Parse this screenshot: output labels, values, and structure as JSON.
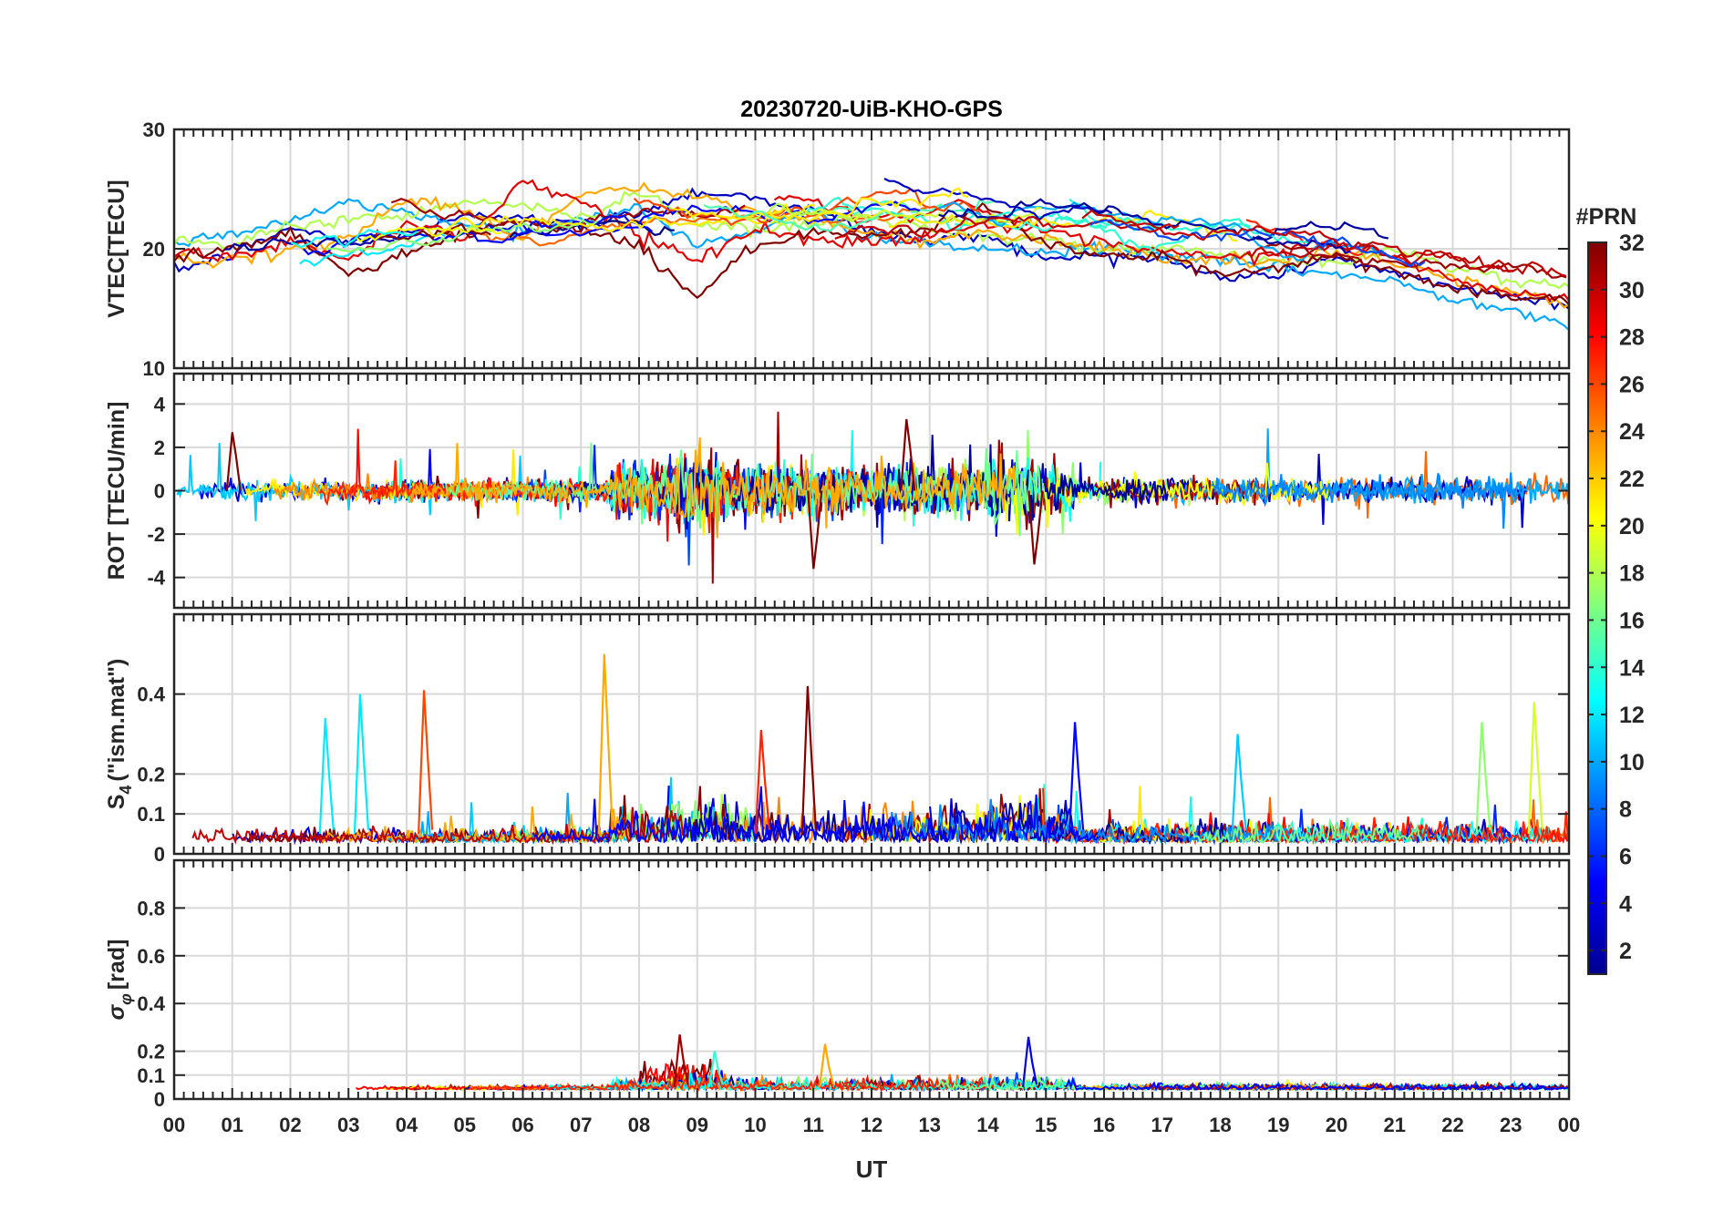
{
  "chart_data": {
    "type": "line",
    "title": "20230720-UiB-KHO-GPS",
    "xlabel": "UT",
    "x_tick_labels": [
      "00",
      "01",
      "02",
      "03",
      "04",
      "05",
      "06",
      "07",
      "08",
      "09",
      "10",
      "11",
      "12",
      "13",
      "14",
      "15",
      "16",
      "17",
      "18",
      "19",
      "20",
      "21",
      "22",
      "23",
      "00"
    ],
    "x_range_hours": [
      0,
      24
    ],
    "colorbar": {
      "label": "#PRN",
      "range": [
        1,
        32
      ],
      "tick_labels": [
        "2",
        "4",
        "6",
        "8",
        "10",
        "12",
        "14",
        "16",
        "18",
        "20",
        "22",
        "24",
        "26",
        "28",
        "30",
        "32"
      ],
      "colormap": "jet"
    },
    "panels": [
      {
        "id": "vtec",
        "ylabel": "VTEC[TECU]",
        "ylim": [
          10,
          30
        ],
        "y_tick_labels": [
          "10",
          "20",
          "30"
        ],
        "y_ticks": [
          10,
          20,
          30
        ],
        "description_series": [
          {
            "prn": 3,
            "values_hourly": [
              18.2,
              19.5,
              21.8,
              20.5,
              21.4,
              22.6,
              22.9,
              21.8,
              23.1,
              24.8,
              24.3,
              23.2,
              21.4,
              20.6,
              21.2,
              19.0,
              19.6,
              19.1,
              17.6,
              17.8,
              19.3,
              17.8,
              16.9,
              16.0,
              15.2
            ]
          },
          {
            "prn": 10,
            "values_hourly": [
              20.6,
              21.3,
              22.4,
              23.8,
              23.1,
              22.0,
              21.7,
              22.5,
              23.4,
              20.2,
              21.6,
              22.9,
              21.0,
              20.3,
              20.0,
              19.6,
              20.2,
              19.5,
              18.9,
              18.4,
              17.9,
              17.2,
              15.8,
              15.1,
              13.4
            ]
          },
          {
            "prn": 18,
            "values_hourly": [
              21.0,
              20.2,
              21.9,
              22.5,
              22.8,
              24.1,
              23.6,
              22.6,
              24.9,
              22.3,
              21.4,
              22.1,
              22.7,
              21.6,
              20.8,
              20.9,
              19.8,
              20.1,
              19.6,
              19.0,
              18.7,
              19.9,
              18.6,
              17.4,
              16.7
            ]
          },
          {
            "prn": 23,
            "values_hourly": [
              19.4,
              18.9,
              19.7,
              21.0,
              24.2,
              23.3,
              20.8,
              24.6,
              25.1,
              24.3,
              23.1,
              22.4,
              21.2,
              20.7,
              21.4,
              20.8,
              20.1,
              19.3,
              19.0,
              18.8,
              19.7,
              18.9,
              17.5,
              16.4,
              15.3
            ]
          },
          {
            "prn": 29,
            "values_hourly": [
              19.7,
              19.3,
              20.6,
              19.1,
              22.4,
              20.8,
              25.6,
              24.1,
              21.2,
              19.1,
              21.6,
              20.8,
              20.5,
              21.2,
              22.1,
              21.3,
              20.4,
              19.7,
              19.2,
              19.6,
              20.6,
              19.2,
              17.5,
              16.2,
              15.8
            ]
          },
          {
            "prn": 32,
            "values_hourly": [
              19.2,
              20.1,
              21.3,
              17.9,
              19.6,
              21.4,
              22.3,
              21.8,
              20.2,
              15.9,
              20.4,
              21.1,
              21.0,
              21.6,
              23.7,
              20.4,
              19.3,
              19.4,
              17.8,
              18.5,
              19.4,
              18.1,
              16.8,
              15.9,
              15.6
            ]
          }
        ]
      },
      {
        "id": "rot",
        "ylabel": "ROT [TECU/min]",
        "ylim": [
          -5.4,
          5.4
        ],
        "y_tick_labels": [
          "-4",
          "-2",
          "0",
          "2",
          "4"
        ],
        "y_ticks": [
          -4,
          -2,
          0,
          2,
          4
        ],
        "notable_peaks": [
          {
            "hour": 11.0,
            "value": -3.6
          },
          {
            "hour": 12.6,
            "value": 3.3
          },
          {
            "hour": 14.8,
            "value": -3.4
          },
          {
            "hour": 1.0,
            "value": 2.7
          }
        ]
      },
      {
        "id": "s4",
        "ylabel": "S4 (\"ism.mat\")",
        "ylabel_main": "S",
        "ylabel_sub": "4",
        "ylabel_rest": "(\"ism.mat\")",
        "ylim": [
          0,
          0.6
        ],
        "y_tick_labels": [
          "0",
          "0.1",
          "0.2",
          "0.4"
        ],
        "y_ticks": [
          0,
          0.1,
          0.2,
          0.4
        ],
        "notable_peaks": [
          {
            "hour": 7.4,
            "value": 0.5,
            "prn": 23
          },
          {
            "hour": 10.9,
            "value": 0.42,
            "prn": 32
          },
          {
            "hour": 4.3,
            "value": 0.41,
            "prn": 26
          },
          {
            "hour": 3.2,
            "value": 0.4,
            "prn": 12
          },
          {
            "hour": 23.4,
            "value": 0.38,
            "prn": 19
          },
          {
            "hour": 15.5,
            "value": 0.33,
            "prn": 5
          },
          {
            "hour": 22.5,
            "value": 0.33,
            "prn": 17
          },
          {
            "hour": 10.1,
            "value": 0.31,
            "prn": 27
          },
          {
            "hour": 2.6,
            "value": 0.34,
            "prn": 12
          },
          {
            "hour": 18.3,
            "value": 0.3,
            "prn": 11
          }
        ]
      },
      {
        "id": "sigma-phi",
        "ylabel": "σφ[rad]",
        "ylabel_main": "σ",
        "ylabel_sub": "φ",
        "ylabel_rest": "[rad]",
        "ylim": [
          0,
          1.0
        ],
        "y_tick_labels": [
          "0",
          "0.1",
          "0.2",
          "0.4",
          "0.6",
          "0.8"
        ],
        "y_ticks": [
          0,
          0.1,
          0.2,
          0.4,
          0.6,
          0.8
        ],
        "notable_peaks": [
          {
            "hour": 8.7,
            "value": 0.27,
            "prn": 31
          },
          {
            "hour": 14.7,
            "value": 0.26,
            "prn": 4
          },
          {
            "hour": 11.2,
            "value": 0.23,
            "prn": 23
          },
          {
            "hour": 9.3,
            "value": 0.2,
            "prn": 14
          }
        ]
      }
    ]
  }
}
